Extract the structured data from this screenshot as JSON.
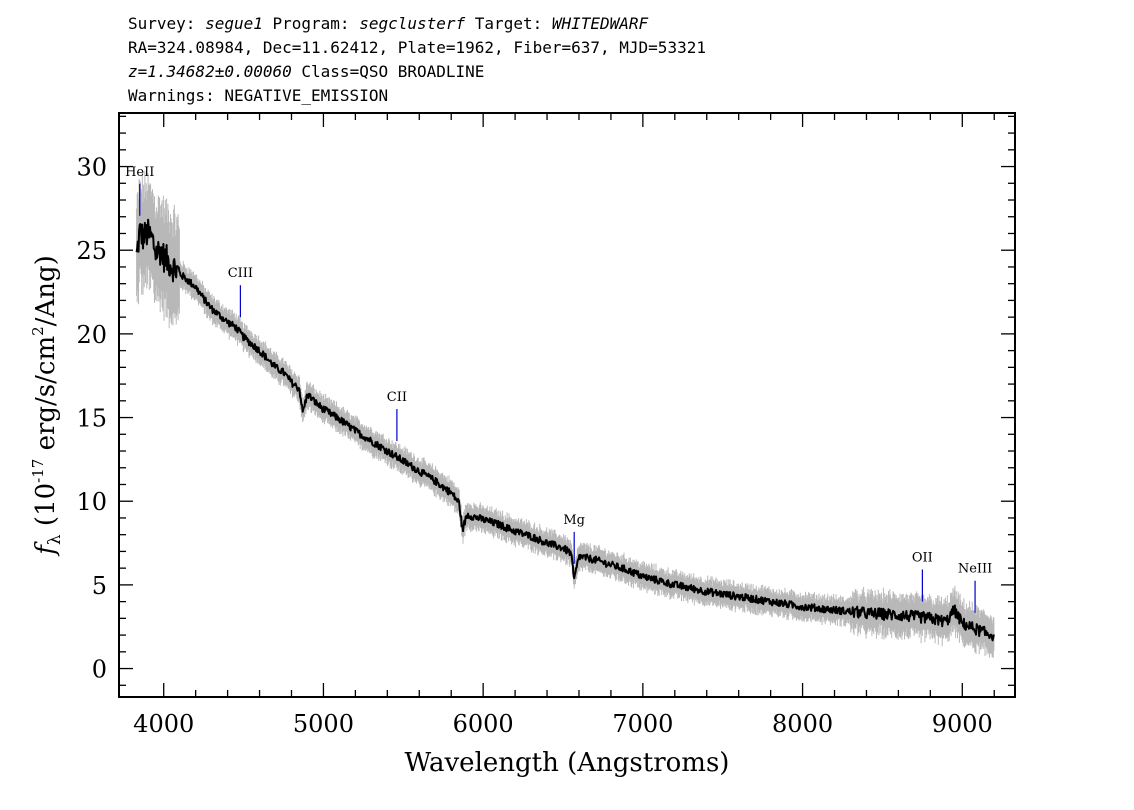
{
  "header": {
    "survey_label": "Survey: ",
    "survey": "segue1",
    "program_label": " Program: ",
    "program": "segclusterf",
    "target_label": " Target: ",
    "target": "WHITEDWARF",
    "line2": "RA=324.08984, Dec=11.62412, Plate=1962, Fiber=637, MJD=53321",
    "redshift": "z=1.34682±0.00060",
    "class_text": " Class=QSO BROADLINE",
    "warnings": "Warnings: NEGATIVE_EMISSION"
  },
  "chart_data": {
    "type": "line",
    "xlabel": "Wavelength (Angstroms)",
    "ylabel": "f_λ (10^-17 erg/s/cm^2/Ang)",
    "xlim": [
      3720,
      9330
    ],
    "ylim": [
      -1.7,
      33.2
    ],
    "xticks": [
      4000,
      5000,
      6000,
      7000,
      8000,
      9000
    ],
    "yticks": [
      0,
      5,
      10,
      15,
      20,
      25,
      30
    ],
    "series": [
      {
        "x": [
          3830,
          3850,
          3870,
          3900,
          3930,
          3950,
          3980,
          4000,
          4050,
          4100,
          4150,
          4200,
          4250,
          4300,
          4350,
          4400,
          4450,
          4500,
          4550,
          4600,
          4650,
          4700,
          4750,
          4800,
          4850,
          4870,
          4900,
          4950,
          5000,
          5100,
          5200,
          5300,
          5400,
          5500,
          5600,
          5700,
          5800,
          5850,
          5870,
          5900,
          6000,
          6100,
          6200,
          6300,
          6400,
          6500,
          6550,
          6570,
          6600,
          6700,
          6800,
          6900,
          7000,
          7200,
          7400,
          7600,
          7800,
          8000,
          8200,
          8400,
          8600,
          8800,
          8900,
          8950,
          9000,
          9050,
          9100,
          9150,
          9200
        ],
        "y": [
          24.6,
          26.1,
          25.8,
          26.0,
          25.6,
          24.9,
          25.0,
          24.6,
          24.1,
          23.6,
          23.2,
          22.8,
          22.1,
          21.5,
          21.1,
          20.7,
          20.4,
          19.8,
          19.4,
          19.0,
          18.5,
          18.0,
          17.7,
          17.1,
          16.7,
          15.3,
          16.4,
          15.9,
          15.5,
          14.9,
          14.2,
          13.6,
          13.0,
          12.4,
          11.8,
          11.2,
          10.5,
          9.9,
          8.3,
          9.2,
          8.9,
          8.6,
          8.2,
          7.9,
          7.5,
          7.2,
          6.9,
          5.3,
          6.7,
          6.5,
          6.2,
          5.9,
          5.5,
          5.0,
          4.6,
          4.3,
          4.0,
          3.7,
          3.5,
          3.3,
          3.2,
          3.0,
          2.8,
          3.5,
          2.7,
          2.5,
          2.3,
          2.1,
          2.0
        ]
      }
    ],
    "emission_lines": [
      {
        "name": "HeII",
        "wavelength": 3850
      },
      {
        "name": "CIII",
        "wavelength": 4480
      },
      {
        "name": "CII",
        "wavelength": 5460
      },
      {
        "name": "Mg",
        "wavelength": 6570
      },
      {
        "name": "OII",
        "wavelength": 8750
      },
      {
        "name": "NeIII",
        "wavelength": 9080
      }
    ],
    "colors": {
      "flux": "#000000",
      "noise": "#b8b8b8",
      "line_markers": "#0000cc"
    }
  }
}
